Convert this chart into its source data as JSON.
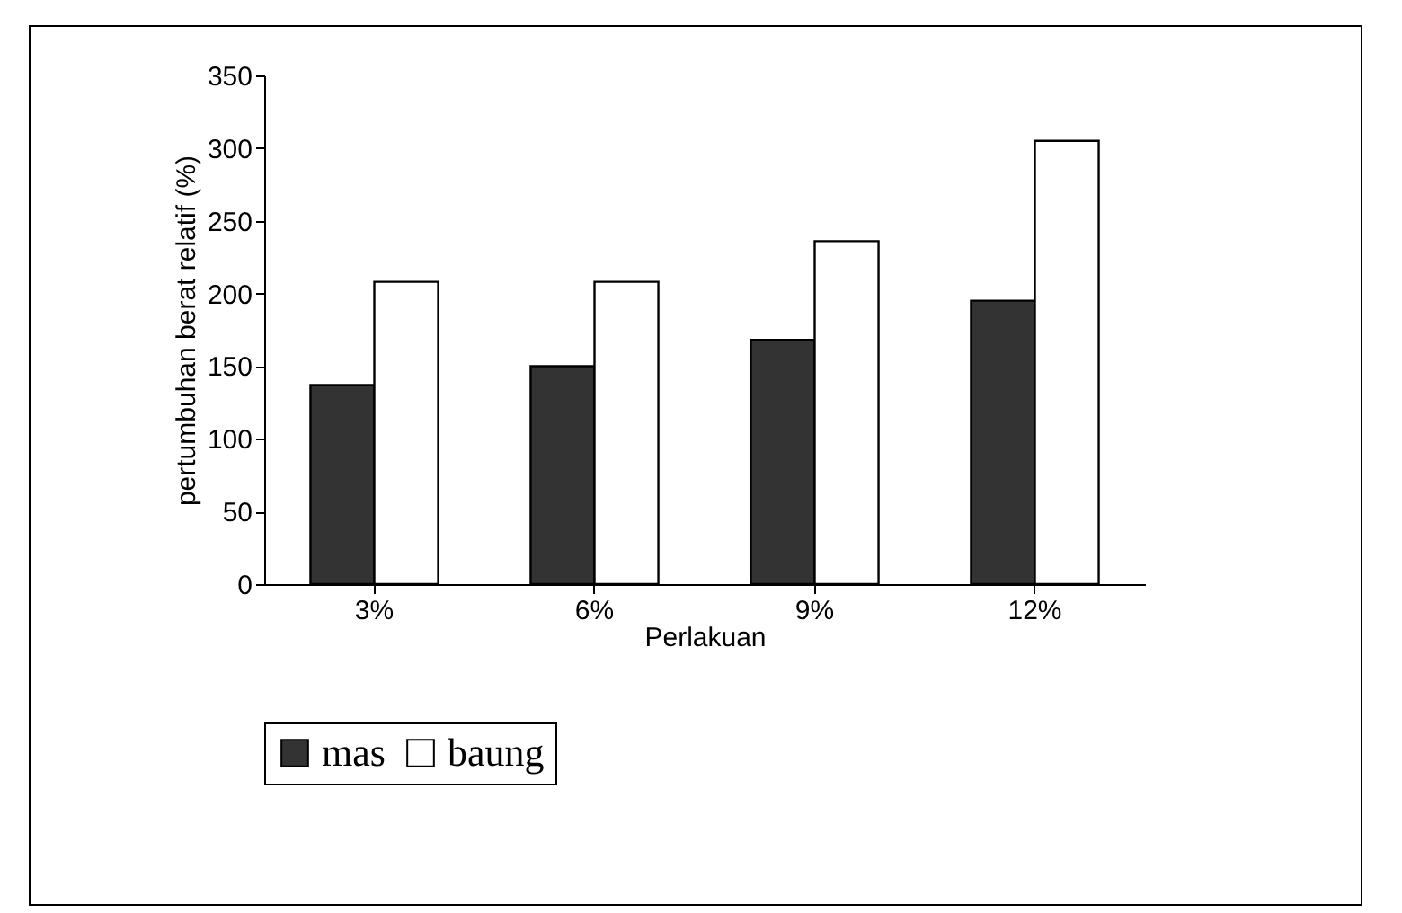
{
  "chart_data": {
    "type": "bar",
    "xlabel": "Perlakuan",
    "ylabel": "pertumbuhan berat relatif (%)",
    "categories": [
      "3%",
      "6%",
      "9%",
      "12%"
    ],
    "series": [
      {
        "name": "mas",
        "color": "#333333",
        "values": [
          137,
          150,
          168,
          195
        ]
      },
      {
        "name": "baung",
        "color": "#ffffff",
        "values": [
          208,
          208,
          236,
          305
        ]
      }
    ],
    "ylim": [
      0,
      350
    ],
    "yticks": [
      0,
      50,
      100,
      150,
      200,
      250,
      300,
      350
    ],
    "grid": false,
    "legend": "bottom"
  }
}
